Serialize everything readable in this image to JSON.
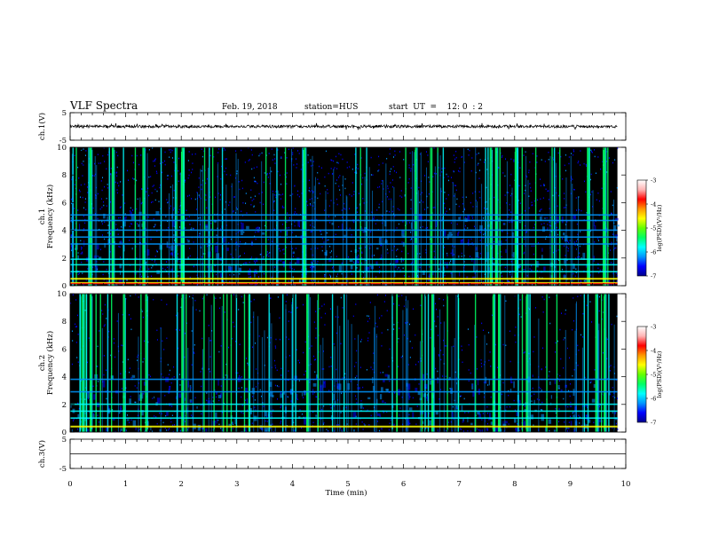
{
  "header": {
    "title": "VLF Spectra",
    "date": "Feb. 19, 2018",
    "station": "station=HUS",
    "start_ut": "start  UT  =    12: 0  : 2"
  },
  "colors": {
    "background": "#000000",
    "colormap": [
      "#00008c",
      "#0000ff",
      "#0096ff",
      "#00ffff",
      "#00ff64",
      "#64ff00",
      "#ffff00",
      "#ff9600",
      "#ff0000",
      "#ffb4b4",
      "#ffffff"
    ]
  },
  "chart_data": [
    {
      "type": "line",
      "panel": "waveform-ch1",
      "ylabel": "ch.1(V)",
      "ylim": [
        -5,
        5
      ],
      "yticks": [
        "5",
        "-5"
      ],
      "xlim": [
        0,
        10
      ],
      "grid": false,
      "series": [
        {
          "x": [
            0,
            9.85
          ],
          "y": [
            0,
            0
          ]
        }
      ]
    },
    {
      "type": "heatmap",
      "panel": "spectrogram-ch1",
      "ylabel": "ch.1 Frequency (kHz)",
      "xlim": [
        0,
        10
      ],
      "ylim": [
        0,
        10
      ],
      "yticks": [
        "0",
        "2",
        "4",
        "6",
        "8",
        "10"
      ],
      "data_xmax": 9.85,
      "colorbar": {
        "label": "log(PSD)(V²/Hz)",
        "range": [
          -7,
          -3
        ],
        "ticks": [
          "-3",
          "-4",
          "-5",
          "-6",
          "-7"
        ]
      },
      "bright_lines_khz": [
        0.2,
        0.5,
        1.0,
        1.5,
        1.9,
        3.0,
        3.5,
        4.0,
        4.7,
        5.1
      ]
    },
    {
      "type": "heatmap",
      "panel": "spectrogram-ch2",
      "ylabel": "ch.2 Frequency (kHz)",
      "xlim": [
        0,
        10
      ],
      "ylim": [
        0,
        10
      ],
      "yticks": [
        "0",
        "2",
        "4",
        "6",
        "8",
        "10"
      ],
      "data_xmax": 9.85,
      "colorbar": {
        "label": "log(PSD)(V²/Hz)",
        "range": [
          -7,
          -3
        ],
        "ticks": [
          "-3",
          "-4",
          "-5",
          "-6",
          "-7"
        ]
      },
      "bright_lines_khz": [
        0.4,
        1.0,
        1.5,
        2.0,
        2.9,
        3.8
      ]
    },
    {
      "type": "line",
      "panel": "waveform-ch3",
      "ylabel": "ch.3(V)",
      "ylim": [
        -5,
        5
      ],
      "yticks": [
        "5",
        "-5"
      ],
      "xlim": [
        0,
        10
      ],
      "grid": false,
      "series": [
        {
          "x": [
            0,
            10
          ],
          "y": [
            0,
            0
          ]
        }
      ]
    }
  ],
  "xaxis": {
    "label": "Time (min)",
    "ticks": [
      "0",
      "1",
      "2",
      "3",
      "4",
      "5",
      "6",
      "7",
      "8",
      "9",
      "10"
    ]
  }
}
